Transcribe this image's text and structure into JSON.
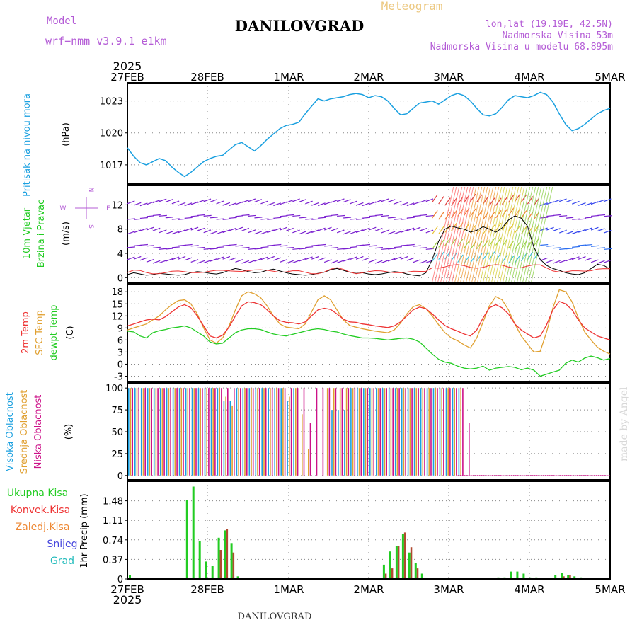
{
  "header": {
    "model_label": "Model",
    "model_name": "wrf−nmm_v3.9.1  e1km",
    "title": "DANILOVGRAD",
    "subtitle": "Meteogram",
    "lonlat": "lon,lat (19.19E, 42.5N)",
    "elevation": "Nadmorska Visina 53m",
    "model_elevation": "Nadmorska Visina u modelu 68.895m",
    "year": "2025",
    "footer_title": "DANILOVGRAD",
    "credit": "made by Angel"
  },
  "colors": {
    "pressure": "#1aa0e0",
    "temp2m": "#ee3333",
    "sfc": "#e0a030",
    "dewpt": "#22cc22",
    "high_cloud": "#1aa0e0",
    "mid_cloud": "#e0a030",
    "low_cloud": "#cc1188",
    "precip_total": "#22cc22",
    "precip_conv": "#ee3333",
    "precip_frozen": "#ee8833",
    "snow": "#4444dd",
    "hail": "#22bbbb",
    "model_label": "#b45cd6",
    "title": "#000000",
    "subtitle": "#ecc880"
  },
  "chart_data": [
    {
      "type": "line",
      "panel": "pressure",
      "ylabel": [
        "Pritisak na nivou mora",
        "(hPa)"
      ],
      "yticks": [
        1017,
        1020,
        1023
      ],
      "ylim": [
        1015.2,
        1024.7
      ],
      "x_labels": [
        "27FEB",
        "28FEB",
        "1MAR",
        "2MAR",
        "3MAR",
        "4MAR",
        "5MAR"
      ],
      "series": [
        {
          "values": [
            1018.6,
            1017.8,
            1017.2,
            1017.0,
            1017.3,
            1017.6,
            1017.4,
            1016.8,
            1016.3,
            1015.9,
            1016.3,
            1016.8,
            1017.3,
            1017.6,
            1017.8,
            1017.9,
            1018.4,
            1018.9,
            1019.1,
            1018.7,
            1018.3,
            1018.8,
            1019.4,
            1019.9,
            1020.4,
            1020.7,
            1020.8,
            1021.0,
            1021.8,
            1022.5,
            1023.2,
            1023.0,
            1023.2,
            1023.3,
            1023.4,
            1023.6,
            1023.7,
            1023.6,
            1023.3,
            1023.5,
            1023.4,
            1023.0,
            1022.3,
            1021.7,
            1021.8,
            1022.3,
            1022.8,
            1022.9,
            1023.0,
            1022.7,
            1023.1,
            1023.5,
            1023.7,
            1023.5,
            1023.0,
            1022.3,
            1021.7,
            1021.6,
            1021.8,
            1022.4,
            1023.1,
            1023.5,
            1023.4,
            1023.3,
            1023.5,
            1023.8,
            1023.6,
            1022.9,
            1021.8,
            1020.8,
            1020.2,
            1020.4,
            1020.8,
            1021.3,
            1021.8,
            1022.1,
            1022.3
          ]
        }
      ]
    },
    {
      "type": "scatter",
      "panel": "wind",
      "ylabel": [
        "10m Vjetar",
        "Brzina i Pravac",
        "(m/s)"
      ],
      "compass": [
        "N",
        "E",
        "S",
        "W"
      ],
      "yticks": [
        0,
        4,
        8,
        12
      ],
      "ylim": [
        -0.9,
        15.2
      ],
      "series": [
        {
          "name": "black line",
          "values": [
            0.5,
            0.8,
            0.6,
            0.4,
            0.5,
            0.7,
            0.6,
            0.5,
            0.4,
            0.5,
            0.8,
            1.0,
            0.9,
            0.7,
            0.6,
            0.8,
            1.2,
            1.5,
            1.3,
            1.0,
            0.8,
            0.9,
            1.2,
            1.4,
            1.1,
            0.8,
            0.6,
            0.5,
            0.4,
            0.5,
            0.7,
            0.9,
            1.3,
            1.5,
            1.2,
            0.9,
            0.7,
            0.8,
            0.6,
            0.5,
            0.6,
            0.8,
            1.0,
            0.9,
            0.6,
            0.4,
            0.3,
            0.8,
            3.0,
            6.0,
            8.0,
            8.5,
            8.2,
            8.0,
            7.5,
            7.8,
            8.4,
            8.0,
            7.5,
            8.2,
            9.5,
            10.2,
            9.8,
            8.5,
            5.0,
            3.0,
            2.0,
            1.5,
            1.2,
            0.8,
            0.6,
            0.5,
            0.8,
            1.5,
            2.2,
            2.0,
            1.4
          ]
        }
      ]
    },
    {
      "type": "line",
      "panel": "temperature",
      "ylabel": [
        "2m Temp",
        "SFC Temp",
        "dewpt Temp",
        "(C)"
      ],
      "yticks": [
        -3,
        0,
        3,
        6,
        9,
        12,
        15,
        18
      ],
      "ylim": [
        -4.5,
        19.8
      ],
      "series": [
        {
          "name": "2m Temp",
          "values": [
            9.5,
            10.0,
            10.5,
            11.0,
            11.2,
            11.0,
            11.8,
            13.0,
            14.2,
            14.8,
            14.0,
            12.0,
            9.5,
            7.0,
            6.5,
            7.2,
            9.2,
            12.0,
            14.5,
            15.5,
            15.3,
            14.8,
            13.5,
            12.0,
            10.8,
            10.4,
            10.3,
            10.0,
            10.5,
            12.0,
            13.5,
            13.9,
            13.6,
            12.5,
            11.2,
            10.5,
            10.4,
            10.0,
            9.8,
            9.5,
            9.3,
            9.1,
            9.5,
            10.5,
            12.0,
            13.5,
            14.2,
            13.8,
            12.5,
            11.0,
            9.6,
            8.8,
            8.2,
            7.5,
            7.0,
            8.5,
            11.5,
            14.0,
            14.8,
            14.0,
            12.5,
            10.0,
            8.5,
            7.5,
            6.5,
            7.0,
            9.8,
            13.5,
            15.6,
            15.0,
            13.5,
            11.0,
            9.0,
            8.0,
            7.0,
            6.5,
            6.0
          ]
        },
        {
          "name": "SFC Temp",
          "values": [
            8.5,
            9.0,
            9.5,
            10.0,
            11.0,
            12.0,
            13.5,
            14.8,
            15.8,
            16.0,
            15.0,
            12.5,
            9.0,
            6.0,
            5.2,
            6.5,
            9.5,
            13.5,
            17.0,
            18.0,
            17.5,
            16.5,
            14.5,
            12.0,
            10.0,
            9.2,
            9.0,
            8.8,
            10.0,
            13.0,
            16.0,
            17.0,
            16.0,
            13.5,
            11.0,
            9.6,
            9.2,
            8.8,
            8.5,
            8.2,
            8.0,
            7.8,
            8.5,
            10.2,
            12.5,
            14.3,
            14.8,
            13.8,
            12.0,
            9.8,
            7.8,
            6.5,
            5.8,
            4.8,
            4.0,
            6.5,
            10.5,
            14.5,
            16.8,
            16.0,
            13.5,
            10.0,
            7.0,
            5.0,
            3.0,
            3.2,
            8.0,
            14.0,
            18.5,
            18.0,
            15.5,
            11.5,
            8.0,
            6.0,
            4.2,
            3.2,
            2.5
          ]
        },
        {
          "name": "dewpt Temp",
          "values": [
            8.2,
            8.0,
            7.0,
            6.5,
            7.8,
            8.3,
            8.6,
            9.0,
            9.2,
            9.5,
            9.0,
            8.0,
            7.0,
            5.5,
            5.0,
            5.2,
            6.5,
            7.8,
            8.5,
            8.8,
            8.8,
            8.6,
            8.0,
            7.5,
            7.2,
            7.0,
            7.4,
            7.8,
            8.2,
            8.6,
            8.8,
            8.6,
            8.2,
            8.0,
            7.5,
            7.1,
            6.8,
            6.5,
            6.5,
            6.4,
            6.2,
            6.0,
            6.2,
            6.4,
            6.5,
            6.2,
            5.5,
            4.0,
            2.5,
            1.2,
            0.5,
            0.2,
            -0.5,
            -1.0,
            -1.2,
            -1.0,
            -0.5,
            -1.5,
            -1.0,
            -0.8,
            -0.6,
            -0.8,
            -1.4,
            -1.0,
            -1.5,
            -3.0,
            -2.5,
            -2.0,
            -1.5,
            0.2,
            1.0,
            0.5,
            1.5,
            2.0,
            1.6,
            1.0,
            1.4
          ]
        }
      ]
    },
    {
      "type": "bar",
      "panel": "cloud",
      "ylabel": [
        "Visoka Oblacnost",
        "Srednja Oblacnost",
        "Niska Oblacnost",
        "(%)"
      ],
      "yticks": [
        0,
        25,
        50,
        75,
        100
      ],
      "ylim": [
        -5,
        105
      ],
      "series": [
        {
          "name": "Visoka Oblacnost",
          "values": [
            100,
            100,
            100,
            100,
            100,
            100,
            100,
            100,
            100,
            100,
            100,
            100,
            100,
            100,
            100,
            85,
            85,
            100,
            100,
            100,
            100,
            100,
            100,
            100,
            100,
            85,
            100,
            0,
            0,
            0,
            0,
            0,
            75,
            75,
            75,
            100,
            100,
            100,
            100,
            100,
            100,
            100,
            100,
            100,
            100,
            100,
            100,
            100,
            100,
            100,
            100,
            100,
            100,
            0,
            0,
            0,
            0,
            0,
            0,
            0,
            0,
            0,
            0,
            0,
            0,
            0,
            0,
            0,
            0,
            0,
            0,
            0,
            0,
            0,
            0,
            0,
            0
          ]
        },
        {
          "name": "Srednja Oblacnost",
          "values": [
            100,
            100,
            100,
            100,
            100,
            100,
            100,
            100,
            100,
            100,
            100,
            100,
            100,
            100,
            100,
            90,
            80,
            100,
            100,
            100,
            100,
            100,
            100,
            100,
            100,
            90,
            100,
            70,
            30,
            0,
            0,
            100,
            100,
            100,
            100,
            100,
            100,
            100,
            100,
            100,
            100,
            100,
            100,
            100,
            100,
            100,
            100,
            100,
            100,
            100,
            100,
            100,
            100,
            0,
            0,
            0,
            0,
            0,
            0,
            0,
            0,
            0,
            0,
            0,
            0,
            0,
            0,
            0,
            0,
            0,
            0,
            0,
            0,
            0,
            0,
            0,
            0
          ]
        },
        {
          "name": "Niska Oblacnost",
          "values": [
            100,
            100,
            100,
            100,
            100,
            100,
            100,
            100,
            100,
            100,
            100,
            100,
            100,
            100,
            100,
            100,
            100,
            100,
            100,
            100,
            100,
            100,
            100,
            100,
            100,
            100,
            100,
            100,
            60,
            100,
            100,
            100,
            100,
            100,
            100,
            100,
            100,
            100,
            100,
            100,
            100,
            100,
            100,
            100,
            100,
            100,
            100,
            100,
            100,
            100,
            100,
            100,
            100,
            60,
            0,
            0,
            0,
            0,
            0,
            0,
            0,
            0,
            0,
            0,
            0,
            0,
            0,
            0,
            0,
            0,
            0,
            0,
            0,
            0,
            0,
            0,
            0
          ]
        }
      ]
    },
    {
      "type": "bar",
      "panel": "precip",
      "ylabel": [
        "1hr Precip (mm)"
      ],
      "legend": [
        "Ukupna Kisa",
        "Konvek.Kisa",
        "Zaledj.Kisa",
        "Snijeg",
        "Grad"
      ],
      "yticks": [
        0,
        0.37,
        0.74,
        1.11,
        1.48
      ],
      "ytick_labels": [
        "0",
        "0.37",
        "0.74",
        "1.11",
        "1.48"
      ],
      "ylim": [
        0,
        1.85
      ],
      "series": [
        {
          "name": "Ukupna Kisa",
          "values": [
            0.08,
            0,
            0,
            0,
            0,
            0,
            0,
            0,
            0,
            1.5,
            1.75,
            0.72,
            0.33,
            0.25,
            0.78,
            0.92,
            0.68,
            0.05,
            0,
            0,
            0,
            0,
            0,
            0,
            0,
            0,
            0,
            0,
            0,
            0,
            0,
            0,
            0,
            0,
            0,
            0,
            0,
            0,
            0,
            0,
            0.27,
            0.52,
            0.62,
            0.85,
            0.5,
            0.3,
            0.1,
            0,
            0,
            0,
            0,
            0,
            0,
            0,
            0,
            0,
            0,
            0,
            0.03,
            0.03,
            0.14,
            0.14,
            0.1,
            0.03,
            0.03,
            0,
            0,
            0.08,
            0.12,
            0.07,
            0.05,
            0.03,
            0,
            0,
            0,
            0,
            0
          ]
        },
        {
          "name": "Konvek.Kisa",
          "values": [
            0,
            0,
            0,
            0,
            0,
            0,
            0,
            0,
            0,
            0,
            0,
            0,
            0,
            0,
            0.55,
            0.95,
            0.5,
            0,
            0,
            0,
            0,
            0,
            0,
            0,
            0,
            0,
            0,
            0,
            0,
            0,
            0,
            0,
            0,
            0,
            0,
            0,
            0,
            0,
            0,
            0,
            0.1,
            0.2,
            0.62,
            0.88,
            0.6,
            0.2,
            0,
            0,
            0,
            0,
            0,
            0,
            0,
            0,
            0,
            0,
            0,
            0,
            0,
            0,
            0,
            0,
            0,
            0,
            0,
            0,
            0,
            0,
            0.05,
            0.08,
            0,
            0,
            0,
            0,
            0,
            0,
            0
          ]
        }
      ]
    }
  ]
}
